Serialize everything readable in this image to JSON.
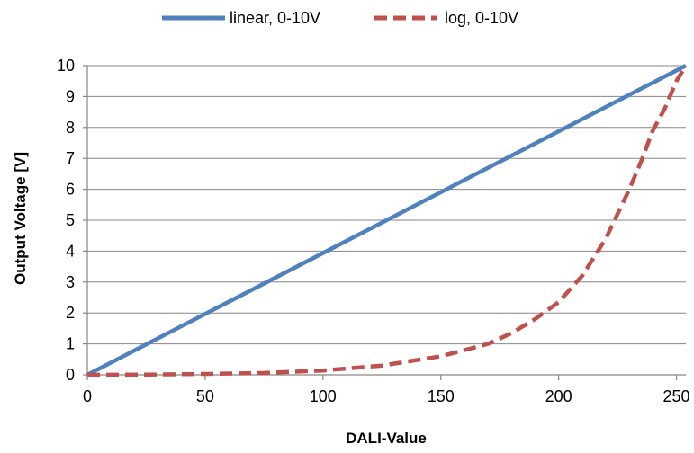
{
  "chart_data": {
    "type": "line",
    "title": "",
    "xlabel": "DALI-Value",
    "ylabel": "Output Voltage [V]",
    "xlim": [
      0,
      254
    ],
    "ylim": [
      0,
      10
    ],
    "x_ticks": [
      "0",
      "50",
      "100",
      "150",
      "200",
      "250"
    ],
    "y_ticks": [
      "0",
      "1",
      "2",
      "3",
      "4",
      "5",
      "6",
      "7",
      "8",
      "9",
      "10"
    ],
    "grid": "horizontal",
    "legend_position": "top",
    "series": [
      {
        "name": "linear, 0-10V",
        "style": "solid",
        "color": "#4F81BD",
        "x": [
          0,
          254
        ],
        "y": [
          0,
          10
        ]
      },
      {
        "name": "log, 0-10V",
        "style": "dashed",
        "color": "#C0504D",
        "x": [
          0,
          25,
          50,
          75,
          100,
          125,
          150,
          160,
          170,
          180,
          190,
          200,
          210,
          220,
          230,
          235,
          240,
          245,
          250,
          254
        ],
        "y": [
          0.0,
          0.01,
          0.03,
          0.06,
          0.14,
          0.3,
          0.6,
          0.8,
          1.0,
          1.35,
          1.8,
          2.35,
          3.2,
          4.4,
          6.0,
          6.9,
          7.9,
          8.6,
          9.5,
          10.0
        ]
      }
    ]
  }
}
